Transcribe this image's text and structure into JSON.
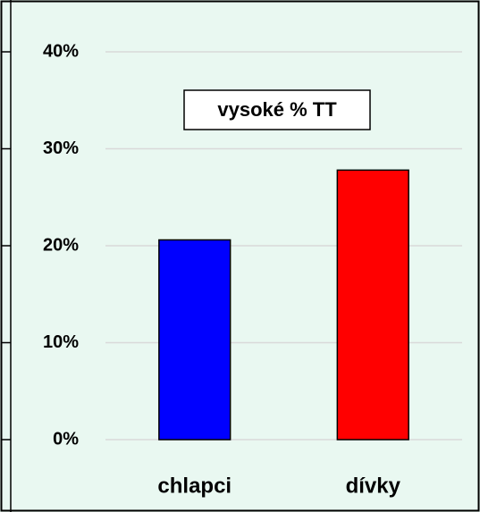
{
  "chart_data": {
    "type": "bar",
    "title": "vysoké % TT",
    "categories": [
      "chlapci",
      "dívky"
    ],
    "values": [
      20.6,
      27.8
    ],
    "colors": [
      "#0000ff",
      "#ff0000"
    ],
    "ylim": [
      0,
      40
    ],
    "yticks": [
      {
        "value": 0,
        "label": "0%"
      },
      {
        "value": 10,
        "label": "10%"
      },
      {
        "value": 20,
        "label": "20%"
      },
      {
        "value": 30,
        "label": "30%"
      },
      {
        "value": 40,
        "label": "40%"
      }
    ],
    "grid": true
  }
}
